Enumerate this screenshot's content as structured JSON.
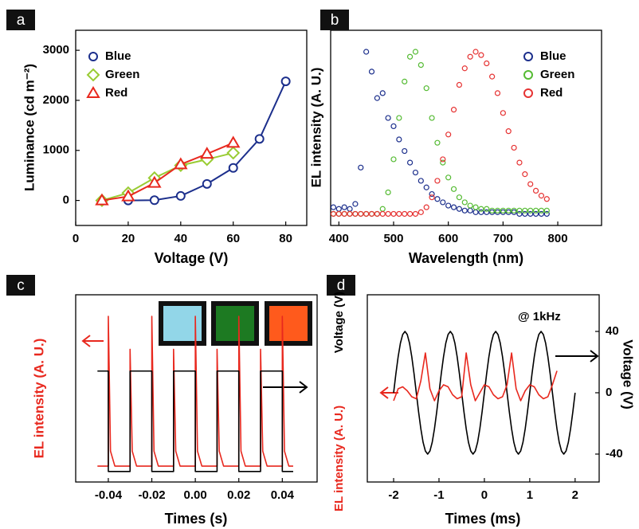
{
  "chart_data": [
    {
      "type": "line",
      "label": "a",
      "xlabel": "Voltage (V)",
      "ylabels": [
        {
          "text": "Luminance (cd m⁻²)",
          "color": "#000000"
        }
      ],
      "xlim": [
        0,
        88
      ],
      "ylim": [
        -500,
        3400
      ],
      "xticks": [
        0,
        20,
        40,
        60,
        80
      ],
      "yticks": [
        0,
        1000,
        2000,
        3000
      ],
      "legend": "upper left",
      "series": [
        {
          "name": "Blue",
          "color": "#1c2f8c",
          "marker": "circle",
          "x": [
            20,
            30,
            40,
            50,
            60,
            70,
            80
          ],
          "values": [
            0,
            5,
            90,
            330,
            650,
            1230,
            2380
          ]
        },
        {
          "name": "Green",
          "color": "#99cc33",
          "marker": "diamond",
          "x": [
            10,
            20,
            30,
            40,
            50,
            60
          ],
          "values": [
            0,
            150,
            450,
            700,
            820,
            950
          ]
        },
        {
          "name": "Red",
          "color": "#e8281e",
          "marker": "triangle",
          "x": [
            10,
            20,
            30,
            40,
            50,
            60
          ],
          "values": [
            0,
            80,
            350,
            720,
            930,
            1150
          ]
        }
      ]
    },
    {
      "type": "scatter",
      "label": "b",
      "xlabel": "Wavelength (nm)",
      "ylabels": [
        {
          "text": "EL intensity (A. U.)",
          "color": "#000000"
        }
      ],
      "xlim": [
        385,
        880
      ],
      "ylim": [
        -0.05,
        1.13
      ],
      "xticks": [
        400,
        500,
        600,
        700,
        800
      ],
      "legend": "upper right",
      "x": [
        390,
        400,
        410,
        420,
        430,
        440,
        450,
        460,
        470,
        480,
        490,
        500,
        510,
        520,
        530,
        540,
        550,
        560,
        570,
        580,
        590,
        600,
        610,
        620,
        630,
        640,
        650,
        660,
        670,
        680,
        690,
        700,
        710,
        720,
        730,
        740,
        750,
        760,
        770,
        780
      ],
      "series": [
        {
          "name": "Blue",
          "color": "#1c2f8c",
          "values": [
            0.06,
            0.05,
            0.06,
            0.05,
            0.08,
            0.3,
            1.0,
            0.88,
            0.72,
            0.75,
            0.6,
            0.55,
            0.47,
            0.4,
            0.33,
            0.27,
            0.22,
            0.18,
            0.14,
            0.11,
            0.09,
            0.07,
            0.06,
            0.05,
            0.04,
            0.04,
            0.03,
            0.03,
            0.03,
            0.03,
            0.03,
            0.03,
            0.03,
            0.03,
            0.02,
            0.02,
            0.02,
            0.02,
            0.02,
            0.02
          ]
        },
        {
          "name": "Green",
          "color": "#55bb33",
          "values": [
            0.02,
            0.02,
            0.02,
            0.02,
            0.02,
            0.02,
            0.02,
            0.02,
            0.02,
            0.05,
            0.15,
            0.35,
            0.6,
            0.82,
            0.97,
            1.0,
            0.92,
            0.78,
            0.6,
            0.45,
            0.33,
            0.24,
            0.17,
            0.12,
            0.09,
            0.07,
            0.06,
            0.05,
            0.05,
            0.04,
            0.04,
            0.04,
            0.04,
            0.04,
            0.04,
            0.04,
            0.04,
            0.04,
            0.04,
            0.04
          ]
        },
        {
          "name": "Red",
          "color": "#e63333",
          "values": [
            0.02,
            0.02,
            0.02,
            0.02,
            0.02,
            0.02,
            0.02,
            0.02,
            0.02,
            0.02,
            0.02,
            0.02,
            0.02,
            0.02,
            0.02,
            0.02,
            0.03,
            0.06,
            0.12,
            0.22,
            0.35,
            0.5,
            0.65,
            0.8,
            0.9,
            0.97,
            1.0,
            0.98,
            0.93,
            0.85,
            0.75,
            0.63,
            0.52,
            0.42,
            0.33,
            0.26,
            0.2,
            0.16,
            0.13,
            0.11
          ]
        }
      ]
    },
    {
      "type": "line",
      "label": "c",
      "xlabel": "Times (s)",
      "ylabels": [
        {
          "text": "EL intensity (A. U.)",
          "color": "#e8281e"
        }
      ],
      "xlim": [
        -0.055,
        0.056
      ],
      "ylim": [
        -0.106,
        1.144
      ],
      "y2lim": [
        -1.21,
        2.52
      ],
      "xticks": [
        -0.04,
        -0.02,
        {
          "value": 0,
          "label": "0.00"
        },
        0.02,
        0.04
      ],
      "series": [
        {
          "color": "#e8281e",
          "x": [
            -0.045,
            -0.04,
            -0.04,
            -0.039,
            -0.037,
            -0.03,
            -0.03,
            -0.029,
            -0.027,
            -0.02,
            -0.02,
            -0.019,
            -0.017,
            -0.01,
            -0.01,
            -0.009,
            -0.007,
            0,
            0,
            0.001,
            0.003,
            0.01,
            0.01,
            0.011,
            0.013,
            0.02,
            0.02,
            0.021,
            0.023,
            0.03,
            0.03,
            0.031,
            0.033,
            0.04,
            0.04,
            0.041,
            0.043,
            0.045
          ],
          "values": [
            0,
            0,
            1,
            0.1,
            0,
            0,
            0.78,
            0.1,
            0,
            0,
            1,
            0.1,
            0,
            0,
            0.78,
            0.1,
            0,
            0,
            1,
            0.1,
            0,
            0,
            0.78,
            0.1,
            0,
            0,
            1,
            0.1,
            0,
            0,
            0.78,
            0.1,
            0,
            0,
            1,
            0.1,
            0,
            0
          ]
        },
        {
          "color": "#000000",
          "axis": "y2",
          "x": [
            -0.045,
            -0.04,
            -0.04,
            -0.03,
            -0.03,
            -0.02,
            -0.02,
            -0.01,
            -0.01,
            0,
            0,
            0.01,
            0.01,
            0.02,
            0.02,
            0.03,
            0.03,
            0.04,
            0.04,
            0.045
          ],
          "values": [
            1,
            1,
            -1,
            -1,
            1,
            1,
            -1,
            -1,
            1,
            1,
            -1,
            -1,
            1,
            1,
            -1,
            -1,
            1,
            1,
            -1,
            -1
          ]
        }
      ]
    },
    {
      "type": "line",
      "label": "d",
      "xlabel": "Times (ms)",
      "ylabels": [
        {
          "text": "EL intensity (A. U.)",
          "color": "#e8281e"
        },
        {
          "text": "Voltage (V)",
          "color": "#000000"
        }
      ],
      "y2label": "Voltage (V)",
      "annotation": "@ 1kHz",
      "xlim": [
        -2.58,
        2.53
      ],
      "ylim": [
        -2.24,
        2.46
      ],
      "y2lim": [
        -58.2,
        63.9
      ],
      "xticks": [
        -2,
        -1,
        0,
        1,
        2
      ],
      "y2ticks": [
        -40,
        0,
        40
      ],
      "series": [
        {
          "color": "#000000",
          "axis": "y2",
          "x": [
            -2,
            -1.95,
            -1.9,
            -1.85,
            -1.8,
            -1.75,
            -1.7,
            -1.65,
            -1.6,
            -1.55,
            -1.5,
            -1.45,
            -1.4,
            -1.35,
            -1.3,
            -1.25,
            -1.2,
            -1.15,
            -1.1,
            -1.05,
            -1,
            -0.95,
            -0.9,
            -0.85,
            -0.8,
            -0.75,
            -0.7,
            -0.65,
            -0.6,
            -0.55,
            -0.5,
            -0.45,
            -0.4,
            -0.35,
            -0.3,
            -0.25,
            -0.2,
            -0.15,
            -0.1,
            -0.05,
            0,
            0.05,
            0.1,
            0.15,
            0.2,
            0.25,
            0.3,
            0.35,
            0.4,
            0.45,
            0.5,
            0.55,
            0.6,
            0.65,
            0.7,
            0.75,
            0.8,
            0.85,
            0.9,
            0.95,
            1,
            1.05,
            1.1,
            1.15,
            1.2,
            1.25,
            1.3,
            1.35,
            1.4,
            1.45,
            1.5,
            1.55,
            1.6,
            1.65,
            1.7,
            1.75,
            1.8,
            1.85,
            1.9,
            1.95,
            2
          ],
          "values": [
            0,
            12.4,
            23.5,
            32.4,
            38,
            40,
            38,
            32.4,
            23.5,
            12.4,
            0,
            -12.4,
            -23.5,
            -32.4,
            -38,
            -40,
            -38,
            -32.4,
            -23.5,
            -12.4,
            0,
            12.4,
            23.5,
            32.4,
            38,
            40,
            38,
            32.4,
            23.5,
            12.4,
            0,
            -12.4,
            -23.5,
            -32.4,
            -38,
            -40,
            -38,
            -32.4,
            -23.5,
            -12.4,
            0,
            12.4,
            23.5,
            32.4,
            38,
            40,
            38,
            32.4,
            23.5,
            12.4,
            0,
            -12.4,
            -23.5,
            -32.4,
            -38,
            -40,
            -38,
            -32.4,
            -23.5,
            -12.4,
            0,
            12.4,
            23.5,
            32.4,
            38,
            40,
            38,
            32.4,
            23.5,
            12.4,
            0,
            -12.4,
            -23.5,
            -32.4,
            -38,
            -40,
            -38,
            -32.4,
            -23.5,
            -12.4,
            0
          ]
        },
        {
          "color": "#e8281e",
          "x": [
            -2,
            -1.9,
            -1.8,
            -1.7,
            -1.6,
            -1.5,
            -1.4,
            -1.3,
            -1.2,
            -1.1,
            -1,
            -0.9,
            -0.8,
            -0.7,
            -0.6,
            -0.5,
            -0.4,
            -0.3,
            -0.2,
            -0.1,
            0,
            0.1,
            0.2,
            0.3,
            0.4,
            0.5,
            0.6,
            0.7,
            0.8,
            0.9,
            1,
            1.1,
            1.2,
            1.3,
            1.4,
            1.5,
            1.6
          ],
          "values": [
            -0.2,
            0.1,
            0.15,
            0.05,
            -0.1,
            -0.15,
            0.3,
            1,
            0.1,
            -0.2,
            0.05,
            0.2,
            0.15,
            -0.05,
            -0.15,
            -0.1,
            1,
            0.2,
            -0.2,
            0,
            0.2,
            0.15,
            -0.05,
            -0.15,
            -0.1,
            0.2,
            1,
            0.1,
            -0.2,
            0.05,
            0.2,
            0.15,
            -0.05,
            -0.15,
            -0.1,
            0.2,
            0.55
          ]
        }
      ]
    }
  ]
}
